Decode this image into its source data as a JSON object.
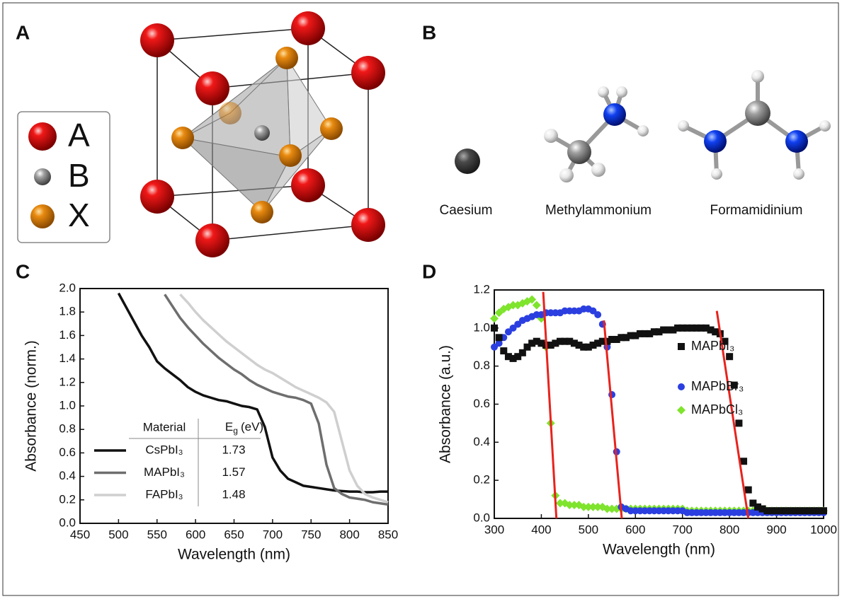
{
  "panels": [
    {
      "label": "A",
      "legend": [
        "A",
        "B",
        "X"
      ]
    },
    {
      "label": "B",
      "molecules": [
        "Caesium",
        "Methylammonium",
        "Formamidinium"
      ]
    },
    {
      "label": "C"
    },
    {
      "label": "D"
    }
  ],
  "chart_data": [
    {
      "type": "line",
      "x_label": "Wavelength (nm)",
      "y_label": "Absorbance (norm.)",
      "xlim": [
        450,
        850
      ],
      "xticks": [
        450,
        500,
        550,
        600,
        650,
        700,
        750,
        800,
        850
      ],
      "ylim": [
        0,
        2
      ],
      "yticks": [
        {
          "value": 0,
          "label": "0.0"
        },
        {
          "value": 0.2,
          "label": "0.2"
        },
        {
          "value": 0.4,
          "label": "0.4"
        },
        {
          "value": 0.6,
          "label": "0.6"
        },
        {
          "value": 0.8,
          "label": "0.8"
        },
        {
          "value": 1,
          "label": "1.0"
        },
        {
          "value": 1.2,
          "label": "1.2"
        },
        {
          "value": 1.4,
          "label": "1.4"
        },
        {
          "value": 1.6,
          "label": "1.6"
        },
        {
          "value": 1.8,
          "label": "1.8"
        },
        {
          "value": 2,
          "label": "2.0"
        }
      ],
      "table_header": {
        "material": "Material",
        "eg_symbol": "E",
        "eg_subscript": "g",
        "eg_unit": "(eV)"
      },
      "x": [
        450,
        460,
        470,
        480,
        490,
        500,
        510,
        520,
        530,
        540,
        550,
        560,
        570,
        580,
        590,
        600,
        610,
        620,
        630,
        640,
        650,
        660,
        670,
        680,
        690,
        700,
        710,
        720,
        730,
        740,
        750,
        760,
        770,
        780,
        790,
        800,
        810,
        820,
        830,
        840,
        850
      ],
      "series": [
        {
          "name": "CsPbI₃",
          "eg": 1.73,
          "color": "#111111",
          "values": [
            null,
            null,
            null,
            null,
            null,
            1.96,
            1.84,
            1.72,
            1.6,
            1.5,
            1.38,
            1.32,
            1.27,
            1.22,
            1.16,
            1.12,
            1.09,
            1.07,
            1.05,
            1.04,
            1.02,
            1.0,
            0.99,
            0.97,
            0.82,
            0.56,
            0.45,
            0.38,
            0.35,
            0.32,
            0.31,
            0.3,
            0.29,
            0.28,
            0.275,
            0.27,
            0.27,
            0.265,
            0.265,
            0.27,
            0.27
          ]
        },
        {
          "name": "MAPbI₃",
          "eg": 1.57,
          "color": "#6e6e6e",
          "values": [
            null,
            null,
            null,
            null,
            null,
            null,
            null,
            null,
            null,
            null,
            null,
            1.95,
            1.85,
            1.75,
            1.67,
            1.6,
            1.53,
            1.47,
            1.41,
            1.36,
            1.31,
            1.27,
            1.22,
            1.18,
            1.15,
            1.12,
            1.1,
            1.08,
            1.07,
            1.05,
            1.02,
            0.85,
            0.5,
            0.3,
            0.25,
            0.22,
            0.21,
            0.2,
            0.18,
            0.17,
            0.16
          ]
        },
        {
          "name": "FAPbI₃",
          "eg": 1.48,
          "color": "#cfcfcf",
          "values": [
            null,
            null,
            null,
            null,
            null,
            null,
            null,
            null,
            null,
            null,
            null,
            null,
            null,
            1.95,
            1.88,
            1.8,
            1.73,
            1.67,
            1.61,
            1.55,
            1.5,
            1.45,
            1.4,
            1.35,
            1.31,
            1.28,
            1.24,
            1.2,
            1.16,
            1.13,
            1.1,
            1.07,
            1.03,
            0.95,
            0.7,
            0.45,
            0.32,
            0.25,
            0.22,
            0.2,
            0.18
          ]
        }
      ]
    },
    {
      "type": "scatter",
      "x_label": "Wavelength (nm)",
      "y_label": "Absorbance (a.u.)",
      "xlim": [
        300,
        1000
      ],
      "xticks": [
        300,
        400,
        500,
        600,
        700,
        800,
        900,
        1000
      ],
      "ylim": [
        0,
        1.2
      ],
      "yticks": [
        {
          "value": 0,
          "label": "0.0"
        },
        {
          "value": 0.2,
          "label": "0.2"
        },
        {
          "value": 0.4,
          "label": "0.4"
        },
        {
          "value": 0.6,
          "label": "0.6"
        },
        {
          "value": 0.8,
          "label": "0.8"
        },
        {
          "value": 1,
          "label": "1.0"
        },
        {
          "value": 1.2,
          "label": "1.2"
        }
      ],
      "x": [
        300,
        310,
        320,
        330,
        340,
        350,
        360,
        370,
        380,
        390,
        400,
        410,
        420,
        430,
        440,
        450,
        460,
        470,
        480,
        490,
        500,
        510,
        520,
        530,
        540,
        550,
        560,
        570,
        580,
        590,
        600,
        610,
        620,
        630,
        640,
        650,
        660,
        670,
        680,
        690,
        700,
        710,
        720,
        730,
        740,
        750,
        760,
        770,
        780,
        790,
        800,
        810,
        820,
        830,
        840,
        850,
        860,
        870,
        880,
        890,
        900,
        910,
        920,
        930,
        940,
        950,
        960,
        970,
        980,
        990,
        1000
      ],
      "series": [
        {
          "name": "MAPbI₃",
          "color": "#111111",
          "marker": "square",
          "values": [
            1.0,
            0.95,
            0.88,
            0.85,
            0.84,
            0.85,
            0.87,
            0.9,
            0.92,
            0.93,
            0.92,
            0.91,
            0.91,
            0.92,
            0.93,
            0.93,
            0.93,
            0.92,
            0.91,
            0.9,
            0.9,
            0.91,
            0.92,
            0.93,
            0.93,
            0.94,
            0.94,
            0.95,
            0.95,
            0.96,
            0.96,
            0.97,
            0.97,
            0.97,
            0.98,
            0.98,
            0.99,
            0.99,
            0.99,
            1.0,
            1.0,
            1.0,
            1.0,
            1.0,
            1.0,
            1.0,
            0.99,
            0.98,
            0.97,
            0.93,
            0.85,
            0.7,
            0.5,
            0.3,
            0.15,
            0.08,
            0.06,
            0.05,
            0.04,
            0.04,
            0.04,
            0.04,
            0.04,
            0.04,
            0.04,
            0.04,
            0.04,
            0.04,
            0.04,
            0.04,
            0.04
          ]
        },
        {
          "name": "MAPbBr₃",
          "color": "#2b3fe0",
          "marker": "circle",
          "values": [
            0.9,
            0.92,
            0.95,
            0.98,
            1.0,
            1.02,
            1.04,
            1.05,
            1.06,
            1.07,
            1.07,
            1.08,
            1.08,
            1.08,
            1.08,
            1.09,
            1.09,
            1.09,
            1.09,
            1.1,
            1.1,
            1.09,
            1.07,
            1.02,
            0.9,
            0.65,
            0.35,
            0.06,
            0.05,
            0.04,
            0.04,
            0.04,
            0.04,
            0.04,
            0.04,
            0.04,
            0.04,
            0.04,
            0.04,
            0.04,
            0.04,
            0.03,
            0.03,
            0.03,
            0.03,
            0.03,
            0.03,
            0.03,
            0.03,
            0.03,
            0.03,
            0.03,
            0.03,
            0.03,
            0.03,
            0.03,
            0.03,
            0.03,
            0.03,
            0.03,
            0.03,
            0.03,
            0.03,
            0.03,
            0.03,
            0.03,
            0.03,
            0.03,
            0.03,
            0.03,
            0.03
          ]
        },
        {
          "name": "MAPbCl₃",
          "color": "#7ee42c",
          "marker": "diamond",
          "values": [
            1.05,
            1.08,
            1.1,
            1.11,
            1.12,
            1.12,
            1.13,
            1.14,
            1.15,
            1.12,
            1.05,
            0.9,
            0.5,
            0.12,
            0.08,
            0.08,
            0.07,
            0.07,
            0.07,
            0.06,
            0.06,
            0.06,
            0.06,
            0.06,
            0.05,
            0.05,
            0.05,
            0.05,
            0.05,
            0.05,
            0.05,
            0.05,
            0.05,
            0.05,
            0.05,
            0.05,
            0.05,
            0.05,
            0.05,
            0.05,
            0.05,
            0.04,
            0.04,
            0.04,
            0.04,
            0.04,
            0.04,
            0.04,
            0.04,
            0.04,
            0.04,
            0.04,
            0.04,
            0.04,
            0.04,
            0.04,
            0.04,
            0.04,
            0.04,
            0.04,
            0.04,
            0.04,
            0.04,
            0.04,
            0.04,
            0.04,
            0.04,
            0.04,
            0.04,
            0.04,
            0.04
          ]
        }
      ],
      "fit_color": "#e8231d",
      "fit_lines": [
        {
          "x": [
            404,
            432
          ],
          "y": [
            1.19,
            0
          ]
        },
        {
          "x": [
            533,
            571
          ],
          "y": [
            1.04,
            0
          ]
        },
        {
          "x": [
            773,
            840
          ],
          "y": [
            1.09,
            0
          ]
        }
      ]
    }
  ]
}
